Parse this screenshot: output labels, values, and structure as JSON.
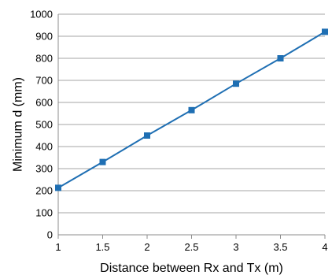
{
  "chart_data": {
    "type": "line",
    "title": "",
    "xlabel": "Distance between Rx and Tx (m)",
    "ylabel": "Minimum d (mm)",
    "xlim": [
      1,
      4
    ],
    "ylim": [
      0,
      1000
    ],
    "x_ticks": [
      "1",
      "1.5",
      "2",
      "2.5",
      "3",
      "3.5",
      "4"
    ],
    "y_ticks": [
      "0",
      "100",
      "200",
      "300",
      "400",
      "500",
      "600",
      "700",
      "800",
      "900",
      "1000"
    ],
    "grid": "horizontal",
    "legend": "none",
    "series": [
      {
        "color": "#1f6fb3",
        "marker": "square",
        "x": [
          1,
          1.5,
          2,
          2.5,
          3,
          3.5,
          4
        ],
        "y": [
          213,
          330,
          450,
          565,
          685,
          800,
          920
        ]
      }
    ]
  }
}
